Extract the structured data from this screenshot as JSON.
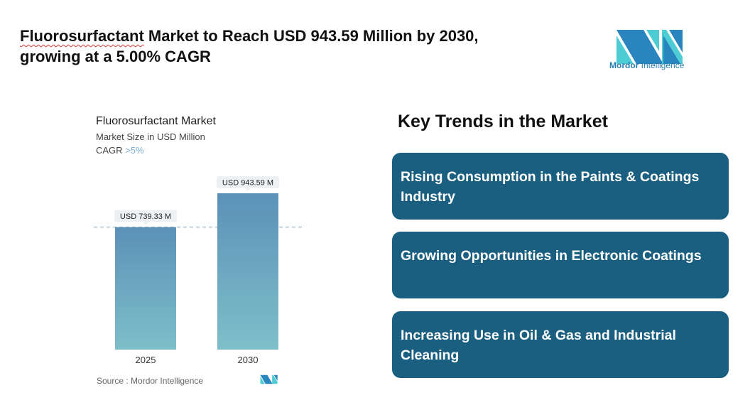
{
  "headline": {
    "first_word": "Fluorosurfactant",
    "rest": " Market to Reach USD 943.59 Million by 2030,",
    "line2": "growing at a 5.00% CAGR"
  },
  "logo": {
    "brand1": "Mordor",
    "brand2": "Intelligence",
    "colors": [
      "#2a85bf",
      "#4dcdd3"
    ]
  },
  "chart_data": {
    "type": "bar",
    "title": "Fluorosurfactant Market",
    "subtitle": "Market Size in USD Million",
    "cagr_label": "CAGR",
    "cagr_value": ">5%",
    "categories": [
      "2025",
      "2030"
    ],
    "values": [
      739.33,
      943.59
    ],
    "data_labels": [
      "USD 739.33 M",
      "USD 943.59 M"
    ],
    "reference_line": 739.33,
    "ylim": [
      0,
      943.59
    ],
    "grid": false,
    "bar_gradient": [
      "#5b91b8",
      "#7dbfc9"
    ],
    "source": "Source :  Mordor Intelligence"
  },
  "trends": {
    "title": "Key Trends in the Market",
    "items": [
      "Rising Consumption in the Paints & Coatings Industry",
      "Growing Opportunities in Electronic Coatings",
      "Increasing Use in Oil & Gas and Industrial Cleaning"
    ],
    "card_color": "#1a5f80"
  }
}
